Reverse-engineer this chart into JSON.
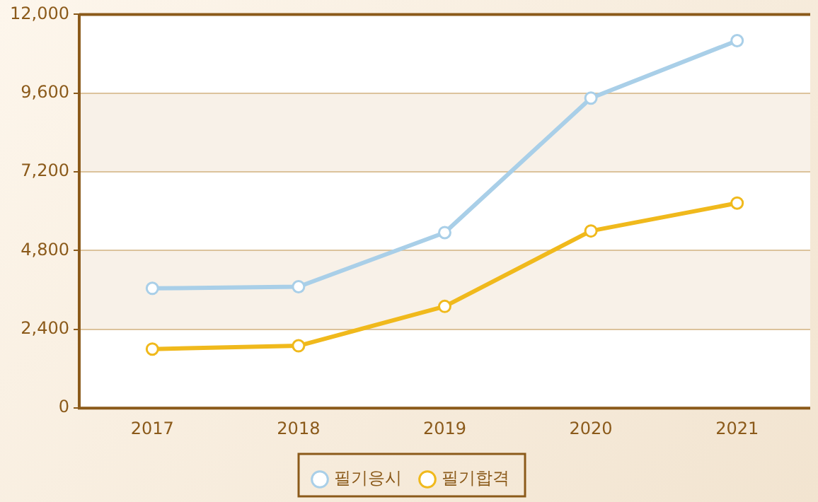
{
  "chart_data": {
    "type": "line",
    "categories": [
      "2017",
      "2018",
      "2019",
      "2020",
      "2021"
    ],
    "series": [
      {
        "name": "필기응시",
        "color": "#a9cfe8",
        "values": [
          3650,
          3700,
          5350,
          9450,
          11200
        ]
      },
      {
        "name": "필기합격",
        "color": "#f0b91c",
        "values": [
          1800,
          1900,
          3100,
          5400,
          6250
        ]
      }
    ],
    "ylim": [
      0,
      12000
    ],
    "yticks": [
      {
        "value": 0,
        "label": "0"
      },
      {
        "value": 2400,
        "label": "2,400"
      },
      {
        "value": 4800,
        "label": "4,800"
      },
      {
        "value": 7200,
        "label": "7,200"
      },
      {
        "value": 9600,
        "label": "9,600"
      },
      {
        "value": 12000,
        "label": "12,000"
      }
    ],
    "grid": "y",
    "legend": "bottom",
    "marker": "circle",
    "line_style": "solid"
  }
}
